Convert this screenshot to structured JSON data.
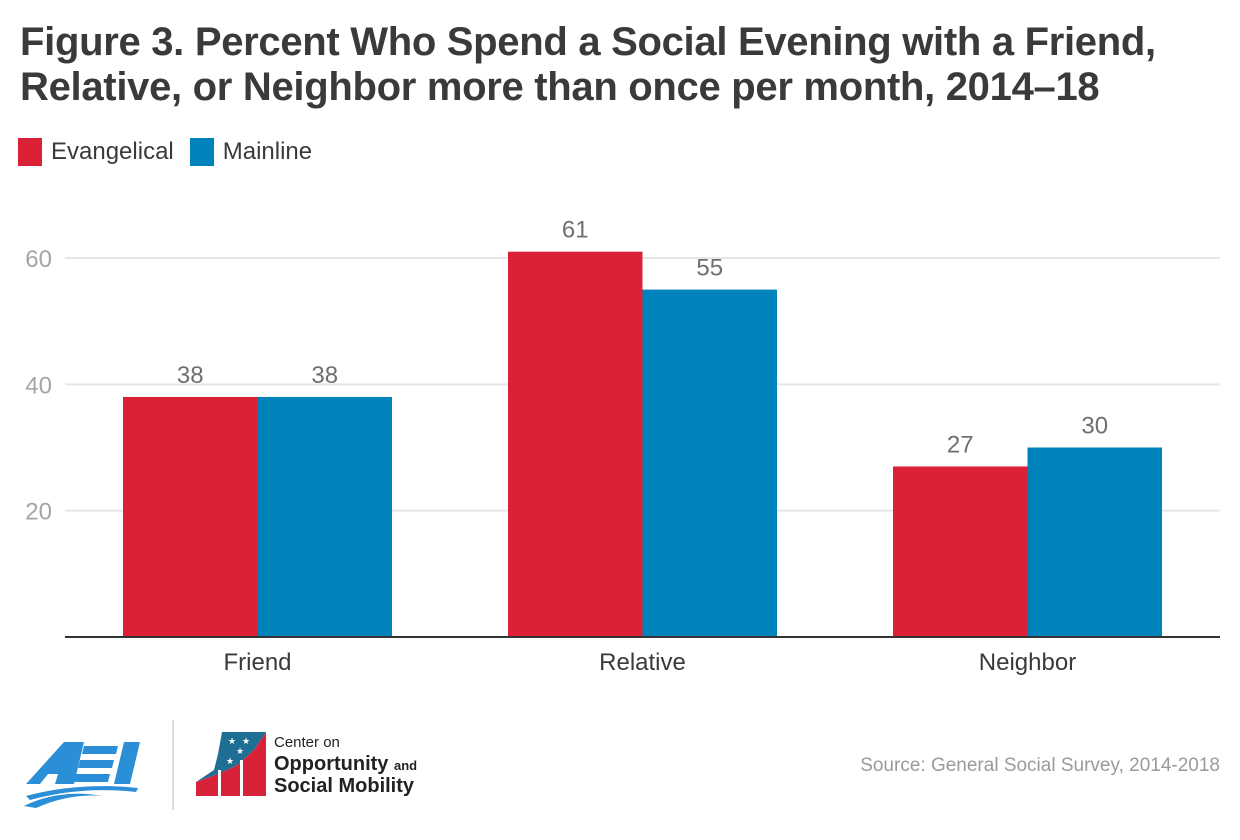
{
  "chart_data": {
    "type": "bar",
    "title": "Figure 3. Percent Who Spend a Social Evening with a Friend, Relative, or Neighbor more than once per month, 2014–18",
    "xlabel": "",
    "ylabel": "",
    "categories": [
      "Friend",
      "Relative",
      "Neighbor"
    ],
    "series": [
      {
        "name": "Evangelical",
        "color": "#dc2035",
        "values": [
          38,
          61,
          27
        ]
      },
      {
        "name": "Mainline",
        "color": "#0082bb",
        "values": [
          38,
          55,
          30
        ]
      }
    ],
    "ylim": [
      0,
      60
    ],
    "yticks": [
      20,
      40,
      60
    ],
    "grid": true,
    "legend_position": "top-left",
    "data_labels": true
  },
  "title_line1": "Figure 3. Percent Who Spend a Social Evening with a Friend,",
  "title_line2": "Relative, or Neighbor more than once per month, 2014–18",
  "legend": [
    {
      "label": "Evangelical",
      "color": "#dc2035"
    },
    {
      "label": "Mainline",
      "color": "#0082bb"
    }
  ],
  "footer": {
    "source": "Source: General Social Survey, 2014-2018",
    "aei_logo_text": "AEI",
    "partner_line1": "Center on",
    "partner_line2": "Opportunity",
    "partner_and": "and",
    "partner_line3": "Social Mobility"
  },
  "colors": {
    "aei_blue": "#2a8fd6",
    "title_text": "#3a3a3a",
    "tick_text": "#a5a5a5",
    "label_text": "#6f6f6f"
  }
}
